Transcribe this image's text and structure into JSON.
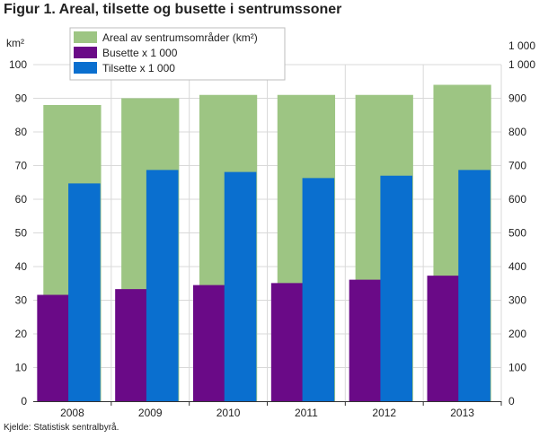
{
  "title": "Figur 1. Areal, tilsette og busette i sentrumssoner",
  "source": "Kjelde: Statistisk sentralbyrå.",
  "colors": {
    "areal": "#9dc583",
    "busette": "#6a0a87",
    "tilsette": "#0a6fcf",
    "grid": "#d9d9d9",
    "axis": "#333333"
  },
  "chart_data": {
    "type": "bar",
    "title": "Figur 1. Areal, tilsette og busette i sentrumssoner",
    "categories": [
      "2008",
      "2009",
      "2010",
      "2011",
      "2012",
      "2013"
    ],
    "left_axis": {
      "unit": "km²",
      "ylim": [
        0,
        100
      ],
      "ticks": [
        "0",
        "10",
        "20",
        "30",
        "40",
        "50",
        "60",
        "70",
        "80",
        "90",
        "100"
      ]
    },
    "right_axis": {
      "unit": "1 000",
      "ylim": [
        0,
        1000
      ],
      "ticks": [
        "0",
        "100",
        "200",
        "300",
        "400",
        "500",
        "600",
        "700",
        "800",
        "900",
        "1 000"
      ]
    },
    "series": [
      {
        "name": "Areal av sentrumsområder (km²)",
        "axis": "left",
        "values": [
          88,
          90,
          91,
          91,
          91,
          94
        ]
      },
      {
        "name": "Busette x 1 000",
        "axis": "right",
        "values": [
          316,
          333,
          345,
          351,
          361,
          373
        ]
      },
      {
        "name": "Tilsette x 1 000",
        "axis": "right",
        "values": [
          647,
          687,
          681,
          663,
          670,
          687
        ]
      }
    ],
    "legend_position": "top-center",
    "grid": true
  }
}
